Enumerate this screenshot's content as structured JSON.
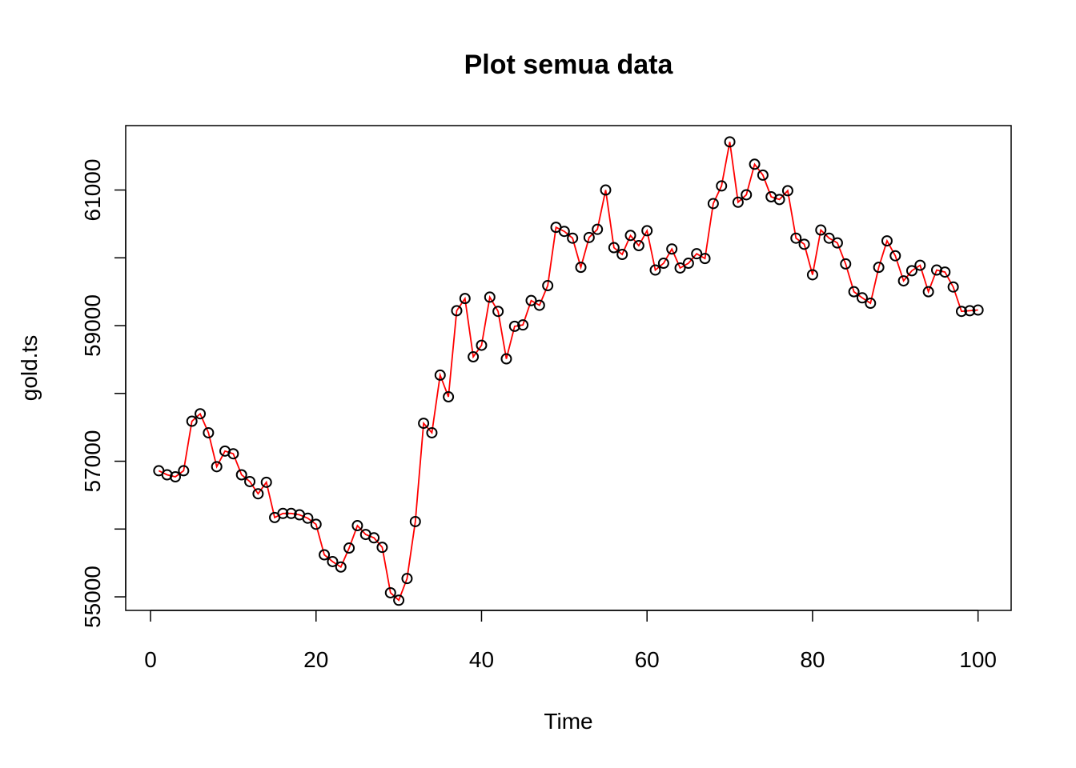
{
  "chart_data": {
    "type": "line",
    "title": "Plot semua data",
    "xlabel": "Time",
    "ylabel": "gold.ts",
    "xlim": [
      -3,
      104
    ],
    "ylim": [
      54800,
      61950
    ],
    "x_ticks": [
      0,
      20,
      40,
      60,
      80,
      100
    ],
    "x_tick_labels": [
      "0",
      "20",
      "40",
      "60",
      "80",
      "100"
    ],
    "y_ticks": [
      55000,
      56000,
      57000,
      58000,
      59000,
      60000,
      61000
    ],
    "y_tick_labels": [
      "55000",
      "",
      "57000",
      "",
      "59000",
      "",
      "61000"
    ],
    "grid": false,
    "legend": "none",
    "line_color": "#ff0000",
    "point_color": "#000000",
    "x": [
      1,
      2,
      3,
      4,
      5,
      6,
      7,
      8,
      9,
      10,
      11,
      12,
      13,
      14,
      15,
      16,
      17,
      18,
      19,
      20,
      21,
      22,
      23,
      24,
      25,
      26,
      27,
      28,
      29,
      30,
      31,
      32,
      33,
      34,
      35,
      36,
      37,
      38,
      39,
      40,
      41,
      42,
      43,
      44,
      45,
      46,
      47,
      48,
      49,
      50,
      51,
      52,
      53,
      54,
      55,
      56,
      57,
      58,
      59,
      60,
      61,
      62,
      63,
      64,
      65,
      66,
      67,
      68,
      69,
      70,
      71,
      72,
      73,
      74,
      75,
      76,
      77,
      78,
      79,
      80,
      81,
      82,
      83,
      84,
      85,
      86,
      87,
      88,
      89,
      90,
      91,
      92,
      93,
      94,
      95,
      96,
      97,
      98,
      99,
      100
    ],
    "series": [
      {
        "values": [
          56860,
          56800,
          56770,
          56860,
          57590,
          57700,
          57420,
          56920,
          57150,
          57110,
          56800,
          56700,
          56520,
          56690,
          56170,
          56230,
          56230,
          56210,
          56160,
          56070,
          55620,
          55520,
          55440,
          55720,
          56050,
          55920,
          55870,
          55730,
          55060,
          54950,
          55270,
          56110,
          57560,
          57420,
          58270,
          57950,
          59220,
          59400,
          58540,
          58710,
          59420,
          59210,
          58510,
          58990,
          59010,
          59370,
          59300,
          59590,
          60450,
          60390,
          60290,
          59860,
          60300,
          60420,
          61000,
          60150,
          60050,
          60330,
          60180,
          60400,
          59820,
          59920,
          60130,
          59850,
          59920,
          60060,
          59990,
          60800,
          61060,
          61710,
          60820,
          60930,
          61380,
          61220,
          60900,
          60860,
          60990,
          60290,
          60200,
          59750,
          60410,
          60290,
          60220,
          59910,
          59500,
          59410,
          59330,
          59860,
          60250,
          60030,
          59660,
          59810,
          59890,
          59500,
          59820,
          59790,
          59570,
          59210,
          59220,
          59230
        ]
      }
    ]
  }
}
